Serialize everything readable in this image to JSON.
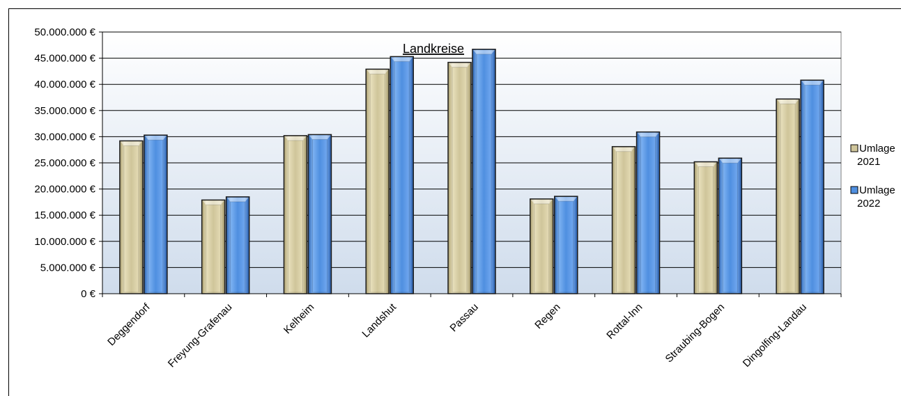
{
  "chart_data": {
    "type": "bar",
    "title": "Landkreise",
    "categories": [
      "Deggendorf",
      "Freyung-Grafenau",
      "Kelheim",
      "Landshut",
      "Passau",
      "Regen",
      "Rottal-Inn",
      "Straubing-Bogen",
      "Dingolfing-Landau"
    ],
    "series": [
      {
        "name": "Umlage 2021",
        "legend_lines": [
          "Umlage",
          "2021"
        ],
        "color": "#cfc59a",
        "values": [
          29200000,
          17900000,
          30200000,
          42900000,
          44200000,
          18100000,
          28100000,
          25200000,
          37200000
        ]
      },
      {
        "name": "Umlage 2022",
        "legend_lines": [
          "Umlage",
          "2022"
        ],
        "color": "#4f8fe0",
        "values": [
          30300000,
          18500000,
          30400000,
          45300000,
          46700000,
          18600000,
          30900000,
          25900000,
          40800000
        ]
      }
    ],
    "ylim": [
      0,
      50000000
    ],
    "yticks": [
      0,
      5000000,
      10000000,
      15000000,
      20000000,
      25000000,
      30000000,
      35000000,
      40000000,
      45000000,
      50000000
    ],
    "ytick_labels": [
      "0 €",
      "5.000.000 €",
      "10.000.000 €",
      "15.000.000 €",
      "20.000.000 €",
      "25.000.000 €",
      "30.000.000 €",
      "35.000.000 €",
      "40.000.000 €",
      "45.000.000 €",
      "50.000.000 €"
    ],
    "xlabel": "",
    "ylabel": "",
    "grid": true,
    "legend_position": "right"
  }
}
